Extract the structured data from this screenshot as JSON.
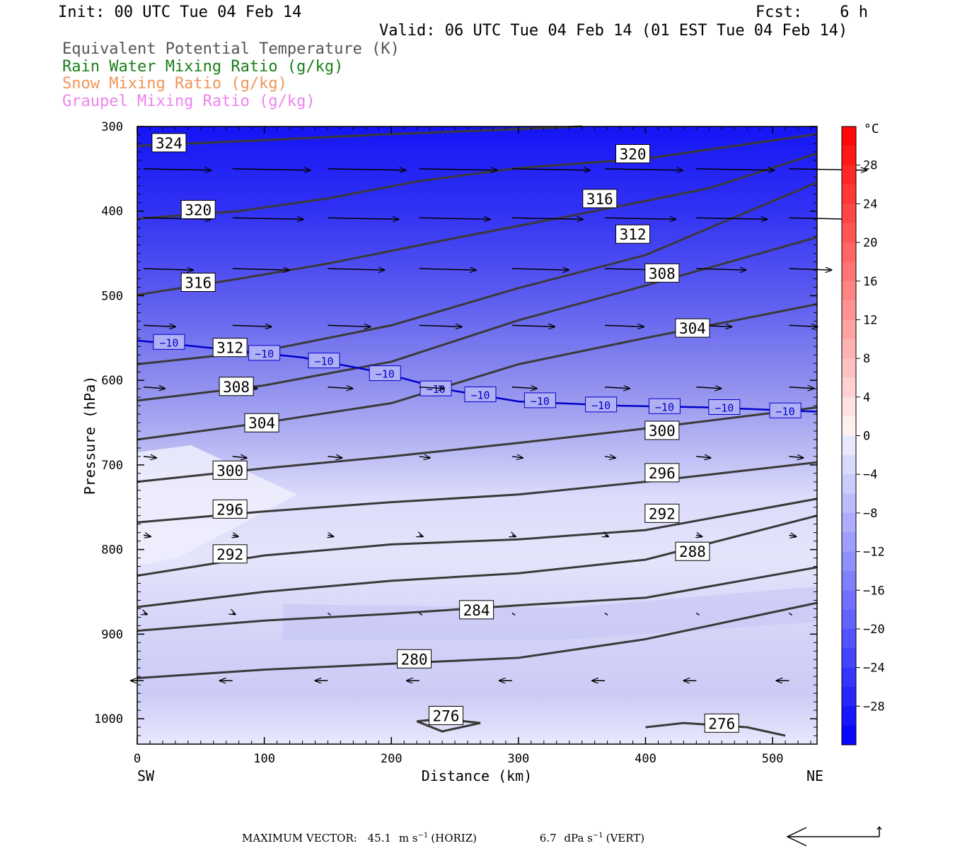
{
  "header": {
    "init": "Init: 00 UTC Tue 04 Feb 14",
    "fcst": "Fcst:    6 h",
    "valid": "Valid: 06 UTC Tue 04 Feb 14 (01 EST Tue 04 Feb 14)"
  },
  "legend": [
    {
      "text": "Equivalent Potential Temperature (K)",
      "color": "#555555"
    },
    {
      "text": "Rain Water Mixing Ratio (g/kg)",
      "color": "#1a7f1a"
    },
    {
      "text": "Snow Mixing Ratio (g/kg)",
      "color": "#f0955a"
    },
    {
      "text": "Graupel Mixing Ratio (g/kg)",
      "color": "#ee82ee"
    }
  ],
  "chart_data": {
    "type": "cross-section",
    "xlabel": "Distance (km)",
    "ylabel": "Pressure (hPa)",
    "xlim": [
      0,
      535
    ],
    "ylim": [
      1030,
      300
    ],
    "x_ticks": [
      "0",
      "100",
      "200",
      "300",
      "400",
      "500"
    ],
    "y_ticks": [
      "300",
      "400",
      "500",
      "600",
      "700",
      "800",
      "900",
      "1000"
    ],
    "x_end_labels": {
      "left": "SW",
      "right": "NE"
    },
    "colorbar": {
      "unit": "°C",
      "range": [
        -32,
        32
      ],
      "labels": [
        "28",
        "24",
        "20",
        "16",
        "12",
        "8",
        "4",
        "0",
        "−4",
        "−8",
        "−12",
        "−16",
        "−20",
        "−24",
        "−28"
      ]
    },
    "theta_e_contours": [
      {
        "value": 324,
        "points": [
          [
            0,
            323
          ],
          [
            100,
            316
          ],
          [
            200,
            309
          ],
          [
            300,
            303
          ],
          [
            350,
            300
          ]
        ],
        "labels": [
          [
            25,
            320
          ]
        ]
      },
      {
        "value": 320,
        "points": [
          [
            0,
            409
          ],
          [
            80,
            400
          ],
          [
            150,
            385
          ],
          [
            220,
            365
          ],
          [
            300,
            349
          ],
          [
            400,
            338
          ],
          [
            535,
            309
          ]
        ],
        "labels": [
          [
            48,
            399
          ],
          [
            390,
            333
          ]
        ]
      },
      {
        "value": 316,
        "points": [
          [
            0,
            499
          ],
          [
            80,
            480
          ],
          [
            150,
            462
          ],
          [
            250,
            432
          ],
          [
            350,
            403
          ],
          [
            450,
            373
          ],
          [
            535,
            332
          ]
        ],
        "labels": [
          [
            48,
            485
          ],
          [
            364,
            386
          ]
        ]
      },
      {
        "value": 312,
        "points": [
          [
            0,
            581
          ],
          [
            100,
            565
          ],
          [
            200,
            535
          ],
          [
            300,
            491
          ],
          [
            400,
            452
          ],
          [
            535,
            366
          ]
        ],
        "labels": [
          [
            73,
            562
          ],
          [
            390,
            428
          ]
        ]
      },
      {
        "value": 308,
        "points": [
          [
            0,
            624
          ],
          [
            100,
            606
          ],
          [
            200,
            578
          ],
          [
            300,
            529
          ],
          [
            400,
            488
          ],
          [
            535,
            431
          ]
        ],
        "labels": [
          [
            78,
            608
          ],
          [
            413,
            474
          ]
        ]
      },
      {
        "value": 304,
        "points": [
          [
            0,
            670
          ],
          [
            100,
            650
          ],
          [
            200,
            627
          ],
          [
            300,
            581
          ],
          [
            400,
            550
          ],
          [
            535,
            510
          ]
        ],
        "labels": [
          [
            98,
            651
          ],
          [
            437,
            539
          ]
        ]
      },
      {
        "value": 300,
        "points": [
          [
            0,
            720
          ],
          [
            100,
            704
          ],
          [
            200,
            690
          ],
          [
            300,
            674
          ],
          [
            400,
            657
          ],
          [
            535,
            632
          ]
        ],
        "labels": [
          [
            73,
            707
          ],
          [
            413,
            660
          ]
        ]
      },
      {
        "value": 296,
        "points": [
          [
            0,
            768
          ],
          [
            100,
            755
          ],
          [
            200,
            744
          ],
          [
            300,
            735
          ],
          [
            400,
            720
          ],
          [
            535,
            697
          ]
        ],
        "labels": [
          [
            73,
            753
          ],
          [
            413,
            710
          ]
        ]
      },
      {
        "value": 292,
        "points": [
          [
            0,
            831
          ],
          [
            100,
            807
          ],
          [
            200,
            794
          ],
          [
            300,
            788
          ],
          [
            400,
            777
          ],
          [
            535,
            740
          ]
        ],
        "labels": [
          [
            73,
            806
          ],
          [
            413,
            758
          ]
        ]
      },
      {
        "value": 288,
        "points": [
          [
            0,
            868
          ],
          [
            100,
            850
          ],
          [
            200,
            837
          ],
          [
            300,
            828
          ],
          [
            400,
            812
          ],
          [
            535,
            760
          ]
        ],
        "labels": [
          [
            437,
            803
          ]
        ]
      },
      {
        "value": 284,
        "points": [
          [
            0,
            896
          ],
          [
            100,
            884
          ],
          [
            200,
            876
          ],
          [
            300,
            866
          ],
          [
            400,
            857
          ],
          [
            535,
            821
          ]
        ],
        "labels": [
          [
            267,
            872
          ]
        ]
      },
      {
        "value": 280,
        "points": [
          [
            0,
            952
          ],
          [
            100,
            942
          ],
          [
            200,
            935
          ],
          [
            300,
            928
          ],
          [
            400,
            906
          ],
          [
            535,
            863
          ]
        ],
        "labels": [
          [
            218,
            930
          ]
        ]
      },
      {
        "value": 276,
        "points": [
          [
            220,
            1003
          ],
          [
            240,
            1000
          ],
          [
            270,
            1005
          ],
          [
            240,
            1015
          ],
          [
            220,
            1003
          ]
        ],
        "labels": [
          [
            243,
            997
          ]
        ]
      },
      {
        "value": 276,
        "points": [
          [
            400,
            1010
          ],
          [
            430,
            1005
          ],
          [
            480,
            1010
          ],
          [
            510,
            1020
          ]
        ],
        "labels": [
          [
            460,
            1006
          ]
        ]
      }
    ],
    "temperature_contour": {
      "value": -10,
      "points": [
        [
          0,
          553
        ],
        [
          60,
          562
        ],
        [
          130,
          573
        ],
        [
          190,
          590
        ],
        [
          240,
          610
        ],
        [
          300,
          625
        ],
        [
          380,
          630
        ],
        [
          450,
          632
        ],
        [
          535,
          637
        ]
      ],
      "labels": [
        [
          25,
          555
        ],
        [
          100,
          568
        ],
        [
          147,
          577
        ],
        [
          195,
          592
        ],
        [
          235,
          610
        ],
        [
          270,
          617
        ],
        [
          317,
          624
        ],
        [
          365,
          629
        ],
        [
          415,
          631
        ],
        [
          462,
          632
        ],
        [
          510,
          636
        ]
      ]
    },
    "max_vector": {
      "horiz": "45.1",
      "vert": "6.7"
    }
  },
  "footer": {
    "max_vector_label": "MAXIMUM VECTOR:",
    "horiz_value": "45.1",
    "horiz_unit": "m s",
    "horiz_exp": "−1",
    "horiz_tag": "(HORIZ)",
    "vert_value": "6.7",
    "vert_unit": "dPa s",
    "vert_exp": "−1",
    "vert_tag": "(VERT)"
  }
}
